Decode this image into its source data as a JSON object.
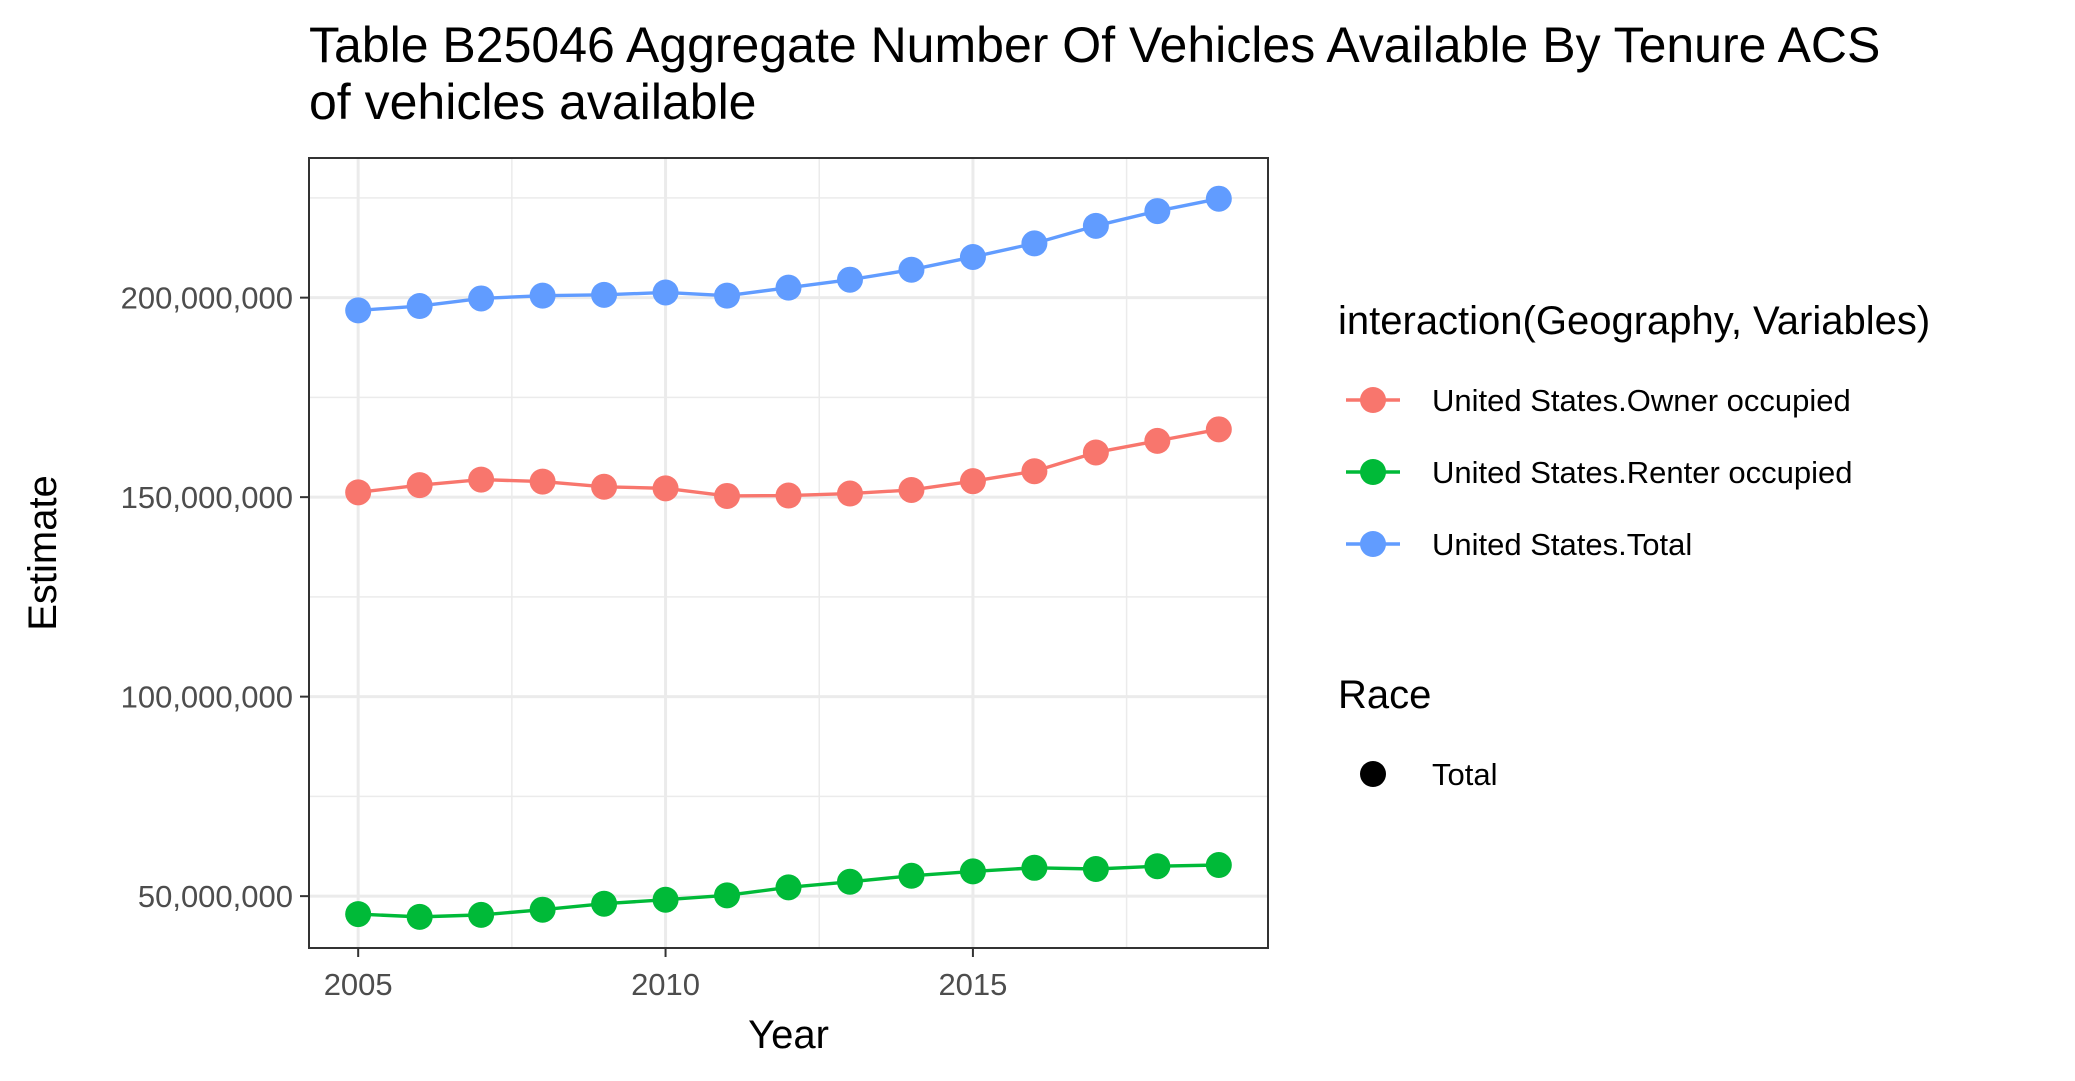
{
  "chart_data": {
    "type": "line",
    "title_lines": [
      "Table B25046 Aggregate Number Of Vehicles Available By Tenure ACS",
      "of vehicles available"
    ],
    "xlabel": "Year",
    "ylabel": "Estimate",
    "xlim": [
      2004.2,
      2019.8
    ],
    "ylim": [
      37000000,
      235000000
    ],
    "x_ticks": [
      2005,
      2010,
      2015
    ],
    "x_minor_ticks": [
      2007.5,
      2012.5,
      2017.5
    ],
    "y_ticks": [
      50000000,
      100000000,
      150000000,
      200000000
    ],
    "y_tick_labels": [
      "50,000,000",
      "100,000,000",
      "150,000,000",
      "200,000,000"
    ],
    "y_minor_ticks": [
      75000000,
      125000000,
      175000000,
      225000000
    ],
    "grid": true,
    "legend_position": "right",
    "x": [
      2005,
      2006,
      2007,
      2008,
      2009,
      2010,
      2011,
      2012,
      2013,
      2014,
      2015,
      2016,
      2017,
      2018,
      2019
    ],
    "series": [
      {
        "name": "United States.Owner occupied",
        "color": "#F8766D",
        "values": [
          151200000,
          153000000,
          154400000,
          153900000,
          152600000,
          152200000,
          150300000,
          150400000,
          150900000,
          151800000,
          154000000,
          156500000,
          161200000,
          164100000,
          167000000
        ]
      },
      {
        "name": "United States.Renter occupied",
        "color": "#00BA38",
        "values": [
          45500000,
          44800000,
          45300000,
          46600000,
          48100000,
          49100000,
          50200000,
          52200000,
          53600000,
          55100000,
          56200000,
          57100000,
          56800000,
          57500000,
          57800000
        ]
      },
      {
        "name": "United States.Total",
        "color": "#619CFF",
        "values": [
          196800000,
          197900000,
          199800000,
          200500000,
          200700000,
          201300000,
          200500000,
          202500000,
          204500000,
          207000000,
          210200000,
          213600000,
          218000000,
          221700000,
          224800000
        ]
      }
    ],
    "legend": {
      "color_title": "interaction(Geography, Variables)",
      "shape_title": "Race",
      "shape_items": [
        {
          "label": "Total",
          "color": "#000000"
        }
      ]
    }
  }
}
